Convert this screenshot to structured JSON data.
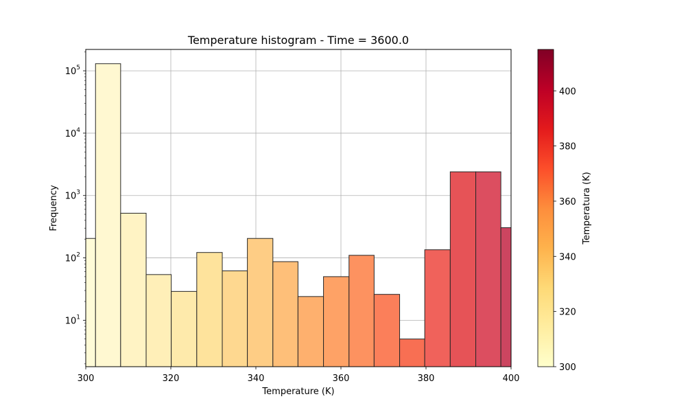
{
  "chart_data": {
    "type": "bar",
    "title": "Temperature histogram - Time = 3600.0",
    "xlabel": "Temperature (K)",
    "ylabel": "Frequency",
    "xlim": [
      300,
      400
    ],
    "ylim": [
      1.8,
      220000
    ],
    "yscale": "log",
    "grid": true,
    "x_ticks": [
      300,
      320,
      340,
      360,
      380,
      400
    ],
    "y_ticks": [
      {
        "base": "10",
        "exp": "1",
        "value": 10
      },
      {
        "base": "10",
        "exp": "2",
        "value": 100
      },
      {
        "base": "10",
        "exp": "3",
        "value": 1000
      },
      {
        "base": "10",
        "exp": "4",
        "value": 10000
      },
      {
        "base": "10",
        "exp": "5",
        "value": 100000
      }
    ],
    "bins": [
      {
        "x0": 296.3,
        "x1": 302.3,
        "value": 205,
        "color": "#fffbd7"
      },
      {
        "x0": 302.3,
        "x1": 308.2,
        "value": 130000,
        "color": "#fff8d1"
      },
      {
        "x0": 308.2,
        "x1": 314.2,
        "value": 520,
        "color": "#fff3c4"
      },
      {
        "x0": 314.2,
        "x1": 320.1,
        "value": 54,
        "color": "#ffefb8"
      },
      {
        "x0": 320.1,
        "x1": 326.1,
        "value": 29,
        "color": "#feeaab"
      },
      {
        "x0": 326.1,
        "x1": 332.1,
        "value": 122,
        "color": "#fee39c"
      },
      {
        "x0": 332.1,
        "x1": 338.0,
        "value": 62,
        "color": "#fed890"
      },
      {
        "x0": 338.0,
        "x1": 344.0,
        "value": 205,
        "color": "#fecd85"
      },
      {
        "x0": 344.0,
        "x1": 349.9,
        "value": 87,
        "color": "#febf79"
      },
      {
        "x0": 349.9,
        "x1": 355.9,
        "value": 24,
        "color": "#feb06e"
      },
      {
        "x0": 355.9,
        "x1": 361.9,
        "value": 50,
        "color": "#fea266"
      },
      {
        "x0": 361.9,
        "x1": 367.8,
        "value": 110,
        "color": "#fd9260"
      },
      {
        "x0": 367.8,
        "x1": 373.8,
        "value": 26,
        "color": "#fb7f5a"
      },
      {
        "x0": 373.8,
        "x1": 379.7,
        "value": 5,
        "color": "#f86f53"
      },
      {
        "x0": 379.7,
        "x1": 385.7,
        "value": 135,
        "color": "#f0625b"
      },
      {
        "x0": 385.7,
        "x1": 391.7,
        "value": 2400,
        "color": "#e65357"
      },
      {
        "x0": 391.7,
        "x1": 397.6,
        "value": 2400,
        "color": "#dc4e60"
      },
      {
        "x0": 397.6,
        "x1": 403.6,
        "value": 305,
        "color": "#cc4560"
      }
    ],
    "colorbar": {
      "label": "Temperatura (K)",
      "range": [
        300,
        415
      ],
      "ticks": [
        300,
        320,
        340,
        360,
        380,
        400
      ],
      "colormap": "YlOrRd",
      "stops": [
        "#ffffcc",
        "#ffeda0",
        "#fed976",
        "#feb24c",
        "#fd8d3c",
        "#fc4e2a",
        "#e31a1c",
        "#bd0026",
        "#800026"
      ]
    }
  }
}
